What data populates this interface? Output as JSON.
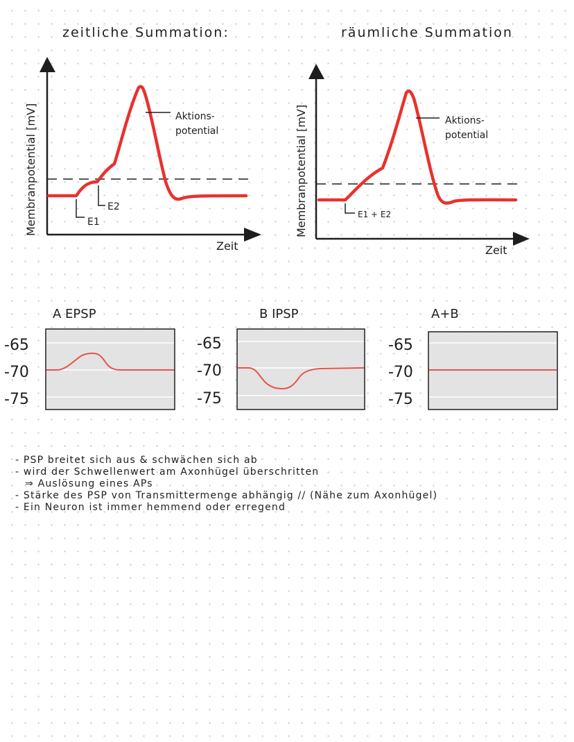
{
  "diagrams": {
    "temporal": {
      "title": "zeitliche Summation:",
      "y_axis_label": "Membranpotential [mV]",
      "x_axis_label": "Zeit",
      "ap_label_line1": "Aktions-",
      "ap_label_line2": "potential",
      "event_label_1": "E1",
      "event_label_2": "E2"
    },
    "spatial": {
      "title": "räumliche Summation",
      "y_axis_label": "Membranpotential [mV]",
      "x_axis_label": "Zeit",
      "ap_label_line1": "Aktions-",
      "ap_label_line2": "potential",
      "event_label": "E1 + E2"
    }
  },
  "psp_panels": [
    {
      "title": "A  EPSP",
      "ticks": [
        "-65",
        "-70",
        "-75"
      ],
      "shape": "depolarizing"
    },
    {
      "title": "B  IPSP",
      "ticks": [
        "-65",
        "-70",
        "-75"
      ],
      "shape": "hyperpolarizing"
    },
    {
      "title": "A+B",
      "ticks": [
        "-65",
        "-70",
        "-75"
      ],
      "shape": "flat"
    }
  ],
  "notes": [
    "- PSP breitet sich aus & schwächen sich ab",
    "- wird der Schwellenwert am Axonhügel überschritten",
    "   ⇒ Auslösung eines APs",
    "- Stärke des PSP von Transmittermenge abhängig // (Nähe zum Axonhügel)",
    "- Ein Neuron ist immer hemmend oder erregend"
  ],
  "colors": {
    "curve": "#e8322e",
    "psp_curve": "#e8534a",
    "panel_bg": "#e3e3e3",
    "ink": "#1e1e1e"
  }
}
